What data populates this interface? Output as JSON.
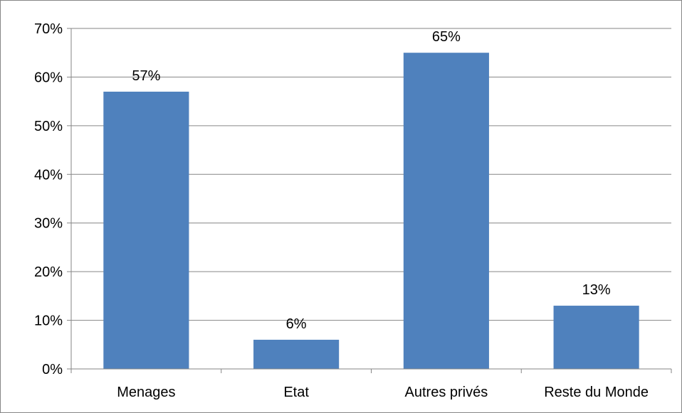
{
  "chart_data": {
    "type": "bar",
    "categories": [
      "Menages",
      "Etat",
      "Autres privés",
      "Reste du Monde"
    ],
    "values": [
      57,
      6,
      65,
      13
    ],
    "data_labels": [
      "57%",
      "6%",
      "65%",
      "13%"
    ],
    "title": "",
    "xlabel": "",
    "ylabel": "",
    "ylim": [
      0,
      70
    ],
    "y_ticks": [
      {
        "value": 0,
        "label": "0%"
      },
      {
        "value": 10,
        "label": "10%"
      },
      {
        "value": 20,
        "label": "20%"
      },
      {
        "value": 30,
        "label": "30%"
      },
      {
        "value": 40,
        "label": "40%"
      },
      {
        "value": 50,
        "label": "50%"
      },
      {
        "value": 60,
        "label": "60%"
      },
      {
        "value": 70,
        "label": "70%"
      }
    ],
    "grid": true,
    "legend": "none",
    "colors": {
      "bar": "#4F81BD",
      "grid": "#868686",
      "axis": "#868686",
      "text": "#000000"
    }
  }
}
